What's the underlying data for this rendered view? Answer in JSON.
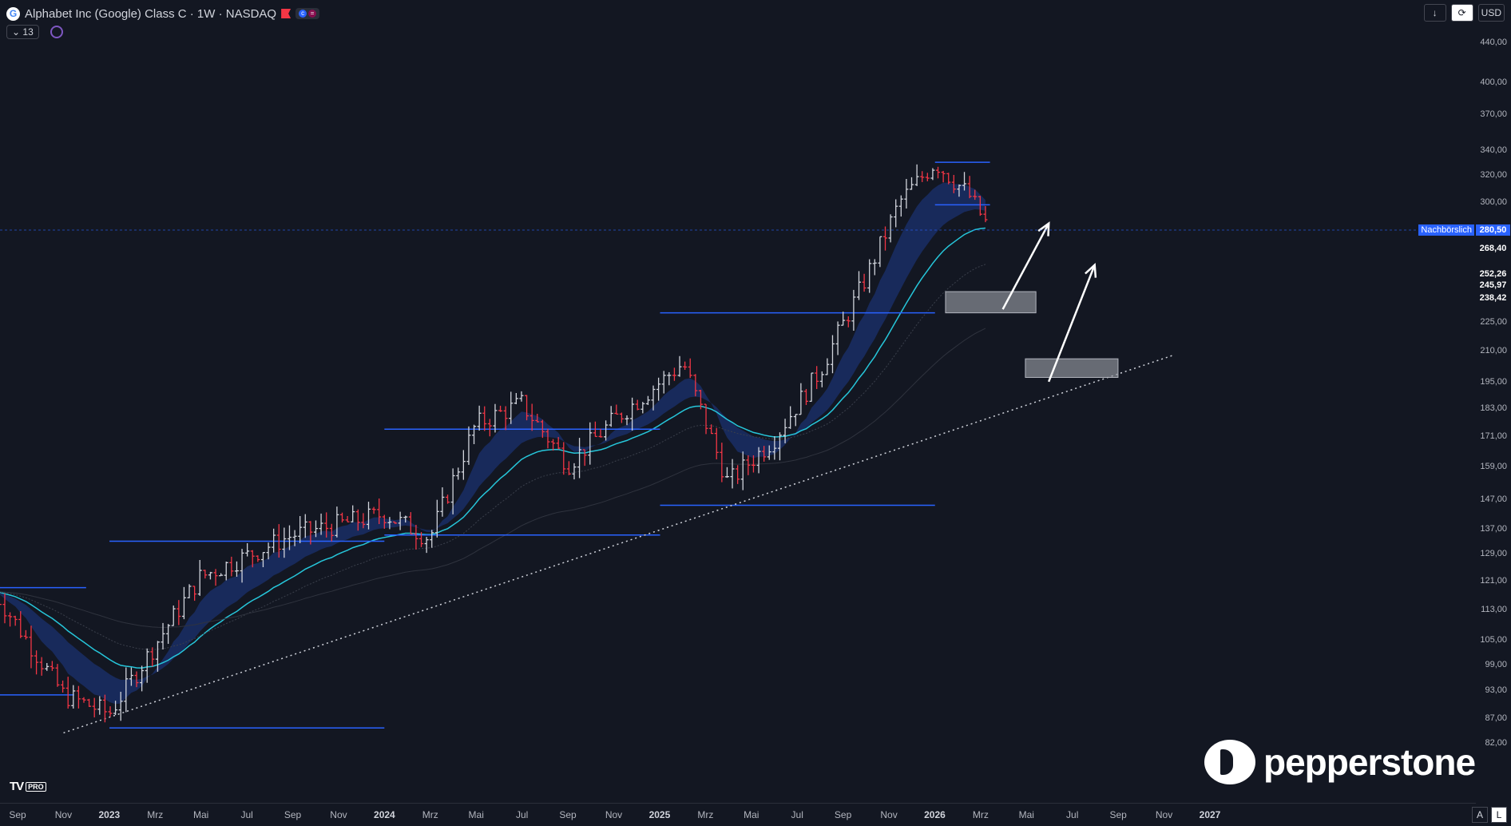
{
  "header": {
    "logo_letter": "G",
    "title": "Alphabet Inc (Google) Class C · 1W · NASDAQ",
    "icons": [
      "flag-icon",
      "currency-pill-icon",
      "equal-pill-icon"
    ]
  },
  "indicators": {
    "count_label": "13"
  },
  "toolbar": {
    "download_label": "↓",
    "sync_label": "⟳",
    "currency": "USD"
  },
  "price_axis": {
    "ticks": [
      "440,00",
      "400,00",
      "370,00",
      "340,00",
      "320,00",
      "300,00",
      "225,00",
      "210,00",
      "195,00",
      "183,00",
      "171,00",
      "159,00",
      "147,00",
      "137,00",
      "129,00",
      "121,00",
      "113,00",
      "105,00",
      "99,00",
      "93,00",
      "87,00",
      "82,00"
    ],
    "labels": [
      {
        "text": "Nachbörslich",
        "value": "280,50",
        "color": "#2962ff"
      },
      {
        "text": "",
        "value": "268,40",
        "color": "#131722"
      },
      {
        "text": "",
        "value": "252,26",
        "color": "#131722"
      },
      {
        "text": "",
        "value": "245,97",
        "color": "#131722"
      },
      {
        "text": "",
        "value": "238,42",
        "color": "#131722"
      }
    ]
  },
  "time_axis": {
    "ticks": [
      {
        "label": "Sep",
        "year": false
      },
      {
        "label": "Nov",
        "year": false
      },
      {
        "label": "2023",
        "year": true
      },
      {
        "label": "Mrz",
        "year": false
      },
      {
        "label": "Mai",
        "year": false
      },
      {
        "label": "Jul",
        "year": false
      },
      {
        "label": "Sep",
        "year": false
      },
      {
        "label": "Nov",
        "year": false
      },
      {
        "label": "2024",
        "year": true
      },
      {
        "label": "Mrz",
        "year": false
      },
      {
        "label": "Mai",
        "year": false
      },
      {
        "label": "Jul",
        "year": false
      },
      {
        "label": "Sep",
        "year": false
      },
      {
        "label": "Nov",
        "year": false
      },
      {
        "label": "2025",
        "year": true
      },
      {
        "label": "Mrz",
        "year": false
      },
      {
        "label": "Mai",
        "year": false
      },
      {
        "label": "Jul",
        "year": false
      },
      {
        "label": "Sep",
        "year": false
      },
      {
        "label": "Nov",
        "year": false
      },
      {
        "label": "2026",
        "year": true
      },
      {
        "label": "Mrz",
        "year": false
      },
      {
        "label": "Mai",
        "year": false
      },
      {
        "label": "Jul",
        "year": false
      },
      {
        "label": "Sep",
        "year": false
      },
      {
        "label": "Nov",
        "year": false
      },
      {
        "label": "2027",
        "year": true
      }
    ]
  },
  "branding": {
    "tradingview": "TV",
    "pro_badge": "PRO",
    "pepperstone": "pepperstone"
  },
  "scale_buttons": {
    "auto": "A",
    "log": "L"
  },
  "colors": {
    "up": "#d1d4dc",
    "down": "#f23645",
    "level": "#2962ff",
    "ema": "#26c6da",
    "band": "#1e3a8a"
  },
  "chart_data": {
    "type": "bar",
    "title": "Alphabet Inc (Google) Class C · 1W · NASDAQ",
    "xlabel": "",
    "ylabel": "",
    "scale": "log",
    "x_range": [
      "2022-08",
      "2027-01"
    ],
    "ylim": [
      80,
      460
    ],
    "last_price": 280.5,
    "approx_weekly_closes": [
      {
        "date": "2022-08-01",
        "close": 118
      },
      {
        "date": "2022-11-01",
        "close": 92
      },
      {
        "date": "2023-01-01",
        "close": 88
      },
      {
        "date": "2023-05-01",
        "close": 122
      },
      {
        "date": "2023-09-01",
        "close": 135
      },
      {
        "date": "2024-01-01",
        "close": 142
      },
      {
        "date": "2024-03-01",
        "close": 134
      },
      {
        "date": "2024-05-01",
        "close": 176
      },
      {
        "date": "2024-07-01",
        "close": 185
      },
      {
        "date": "2024-09-01",
        "close": 160
      },
      {
        "date": "2024-11-01",
        "close": 178
      },
      {
        "date": "2025-02-01",
        "close": 204
      },
      {
        "date": "2025-04-01",
        "close": 153
      },
      {
        "date": "2025-06-01",
        "close": 170
      },
      {
        "date": "2025-08-01",
        "close": 200
      },
      {
        "date": "2025-10-01",
        "close": 250
      },
      {
        "date": "2025-11-15",
        "close": 300
      },
      {
        "date": "2026-01-01",
        "close": 330
      },
      {
        "date": "2026-02-15",
        "close": 305
      },
      {
        "date": "2026-03-15",
        "close": 280.5
      }
    ],
    "levels": [
      {
        "price": 119,
        "from": "2022-08-01",
        "to": "2022-12-01"
      },
      {
        "price": 92,
        "from": "2022-08-01",
        "to": "2022-11-15"
      },
      {
        "price": 85,
        "from": "2023-01-01",
        "to": "2024-01-01"
      },
      {
        "price": 133,
        "from": "2023-01-01",
        "to": "2024-01-01"
      },
      {
        "price": 174,
        "from": "2024-01-01",
        "to": "2025-01-01"
      },
      {
        "price": 135,
        "from": "2024-01-01",
        "to": "2025-01-01"
      },
      {
        "price": 230,
        "from": "2025-01-01",
        "to": "2026-01-01"
      },
      {
        "price": 145,
        "from": "2025-01-01",
        "to": "2026-01-01"
      },
      {
        "price": 330,
        "from": "2026-01-01",
        "to": "2026-03-15"
      },
      {
        "price": 298,
        "from": "2026-01-01",
        "to": "2026-03-15"
      }
    ],
    "zones": [
      {
        "from": "2026-01-15",
        "to": "2026-05-15",
        "low": 230,
        "high": 242
      },
      {
        "from": "2026-05-01",
        "to": "2026-09-01",
        "low": 197,
        "high": 206
      }
    ],
    "trendline": {
      "from": {
        "date": "2022-11-01",
        "price": 84
      },
      "to": {
        "date": "2026-11-15",
        "price": 208
      }
    },
    "projections": [
      {
        "from": {
          "date": "2026-04-01",
          "price": 232
        },
        "to": {
          "date": "2026-06-01",
          "price": 285
        }
      },
      {
        "from": {
          "date": "2026-06-01",
          "price": 195
        },
        "to": {
          "date": "2026-08-01",
          "price": 258
        }
      }
    ]
  }
}
